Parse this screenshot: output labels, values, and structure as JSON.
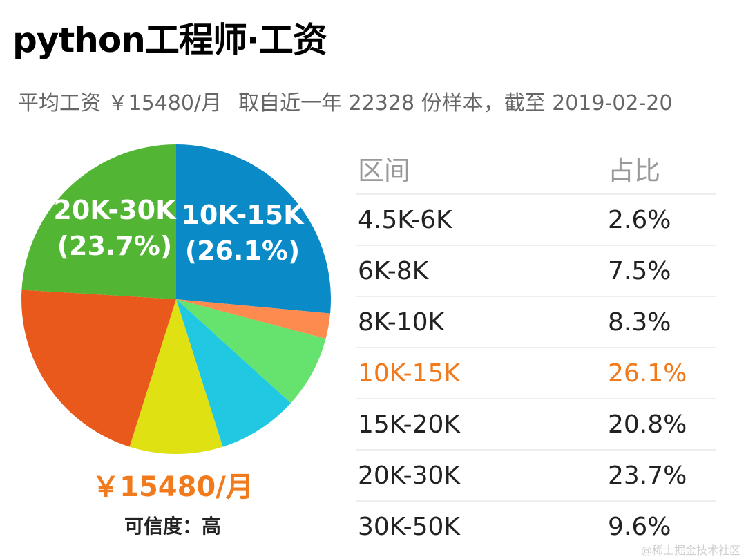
{
  "header": {
    "title": "python工程师·工资",
    "avg_salary_text": "平均工资 ￥15480/月",
    "sample_text": "取自近一年 22328 份样本，截至 2019-02-20"
  },
  "summary": {
    "avg_value": "￥15480/月",
    "credibility": "可信度：高"
  },
  "table": {
    "header_range": "区间",
    "header_share": "占比",
    "highlight_color": "#f07a1c"
  },
  "watermark": "@稀土掘金技术社区",
  "chart_data": {
    "type": "pie",
    "categories": [
      "4.5K-6K",
      "6K-8K",
      "8K-10K",
      "10K-15K",
      "15K-20K",
      "20K-30K",
      "30K-50K"
    ],
    "shares": [
      "2.6%",
      "7.5%",
      "8.3%",
      "26.1%",
      "20.8%",
      "23.7%",
      "9.6%"
    ],
    "values": [
      2.6,
      7.5,
      8.3,
      26.1,
      20.8,
      23.7,
      9.6
    ],
    "colors": [
      "#fd8b4f",
      "#66e26e",
      "#21c8e2",
      "#0a8ac6",
      "#ea591c",
      "#52b534",
      "#dfe112"
    ],
    "slice_order": [
      "10K-15K",
      "4.5K-6K",
      "6K-8K",
      "8K-10K",
      "30K-50K",
      "15K-20K",
      "20K-30K"
    ],
    "slice_labels": [
      {
        "name": "10K-15K",
        "line1": "10K-15K",
        "line2": "(26.1%)"
      },
      {
        "name": "20K-30K",
        "line1": "20K-30K",
        "line2": "(23.7%)"
      }
    ],
    "highlight": "10K-15K"
  }
}
